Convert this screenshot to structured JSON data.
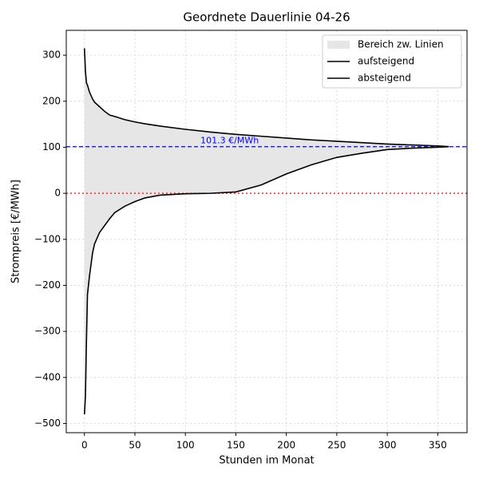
{
  "chart_data": {
    "type": "line",
    "title": "Geordnete Dauerlinie 04-26",
    "x_label": "Stunden im Monat",
    "y_label": "Strompreis [€/MWh]",
    "x": [
      0,
      1,
      2,
      3,
      5,
      8,
      10,
      15,
      20,
      25,
      30,
      40,
      50,
      60,
      75,
      100,
      125,
      150,
      175,
      200,
      225,
      250,
      275,
      300,
      325,
      350,
      361
    ],
    "series": [
      {
        "name": "aufsteigend",
        "color": "#000000",
        "values": [
          -480,
          -440,
          -320,
          -220,
          -180,
          -130,
          -110,
          -85,
          -70,
          -55,
          -42,
          -28,
          -18,
          -10,
          -4,
          -1,
          0,
          3,
          18,
          42,
          62,
          78,
          87,
          95,
          98,
          100,
          101.3
        ]
      },
      {
        "name": "absteigend",
        "color": "#000000",
        "values": [
          315,
          265,
          240,
          235,
          220,
          205,
          198,
          188,
          178,
          170,
          167,
          160,
          155,
          151,
          146,
          139,
          133,
          128,
          124,
          120,
          116,
          113,
          110,
          107,
          105,
          103,
          101.3
        ]
      }
    ],
    "fill": {
      "name": "Bereich zw. Linien",
      "color": "#e6e6e6"
    },
    "hlines": [
      {
        "value": 101.3,
        "label": "101.3 €/MWh",
        "color": "#0000ff",
        "style": "dashed"
      },
      {
        "value": 0,
        "color": "#ff0000",
        "style": "dotted"
      }
    ],
    "xlim": [
      -18,
      379
    ],
    "ylim": [
      -520,
      354
    ],
    "xticks": [
      0,
      50,
      100,
      150,
      200,
      250,
      300,
      350
    ],
    "yticks": [
      {
        "value": -500,
        "label": "−500"
      },
      {
        "value": -400,
        "label": "−400"
      },
      {
        "value": -300,
        "label": "−300"
      },
      {
        "value": -200,
        "label": "−200"
      },
      {
        "value": -100,
        "label": "−100"
      },
      0,
      100,
      200,
      300
    ],
    "grid": true,
    "legend": "upper right"
  }
}
